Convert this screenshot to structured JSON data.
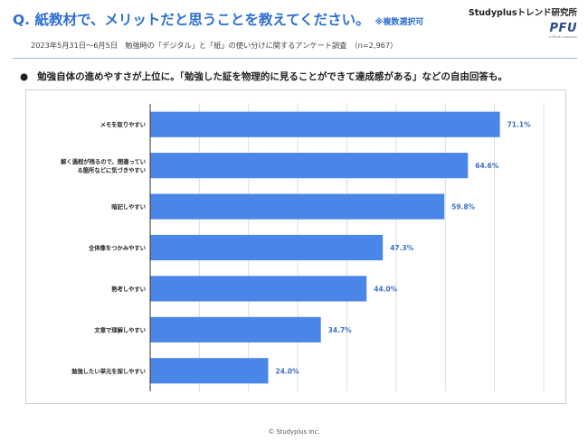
{
  "header": {
    "question": "Q. 紙教材で、メリットだと思うことを教えてください。",
    "note": "※複数選択可",
    "survey": "2023年5月31日〜6月5日　勉強時の「デジタル」と「紙」の使い分けに関するアンケート調査　（n=2,967）",
    "brand_name": "Studyplusトレンド研究所",
    "brand_logo": "PFU",
    "brand_logo_sub": "a Ricoh Company"
  },
  "bullet": {
    "text": "勉強自体の進めやすさが上位に。「勉強した証を物理的に見ることができて達成感がある」などの自由回答も。"
  },
  "footer": {
    "copyright": "© Studyplus Inc."
  },
  "colors": {
    "bar": "#4a86e8",
    "title": "#2f6fd0",
    "value_label": "#3c6fc9"
  },
  "chart_data": {
    "type": "bar",
    "orientation": "horizontal",
    "categories": [
      [
        "メモを取りやすい"
      ],
      [
        "解く過程が残るので、間違ってい",
        "る箇所などに気づきやすい"
      ],
      [
        "暗記しやすい"
      ],
      [
        "全体像をつかみやすい"
      ],
      [
        "熟考しやすい"
      ],
      [
        "文章で理解しやすい"
      ],
      [
        "勉強したい単元を探しやすい"
      ]
    ],
    "values": [
      71.1,
      64.6,
      59.8,
      47.3,
      44.0,
      34.7,
      24.0
    ],
    "value_labels": [
      "71.1%",
      "64.6%",
      "59.8%",
      "47.3%",
      "44.0%",
      "34.7%",
      "24.0%"
    ],
    "xlim": [
      0,
      80
    ],
    "grid": true,
    "legend": false
  }
}
